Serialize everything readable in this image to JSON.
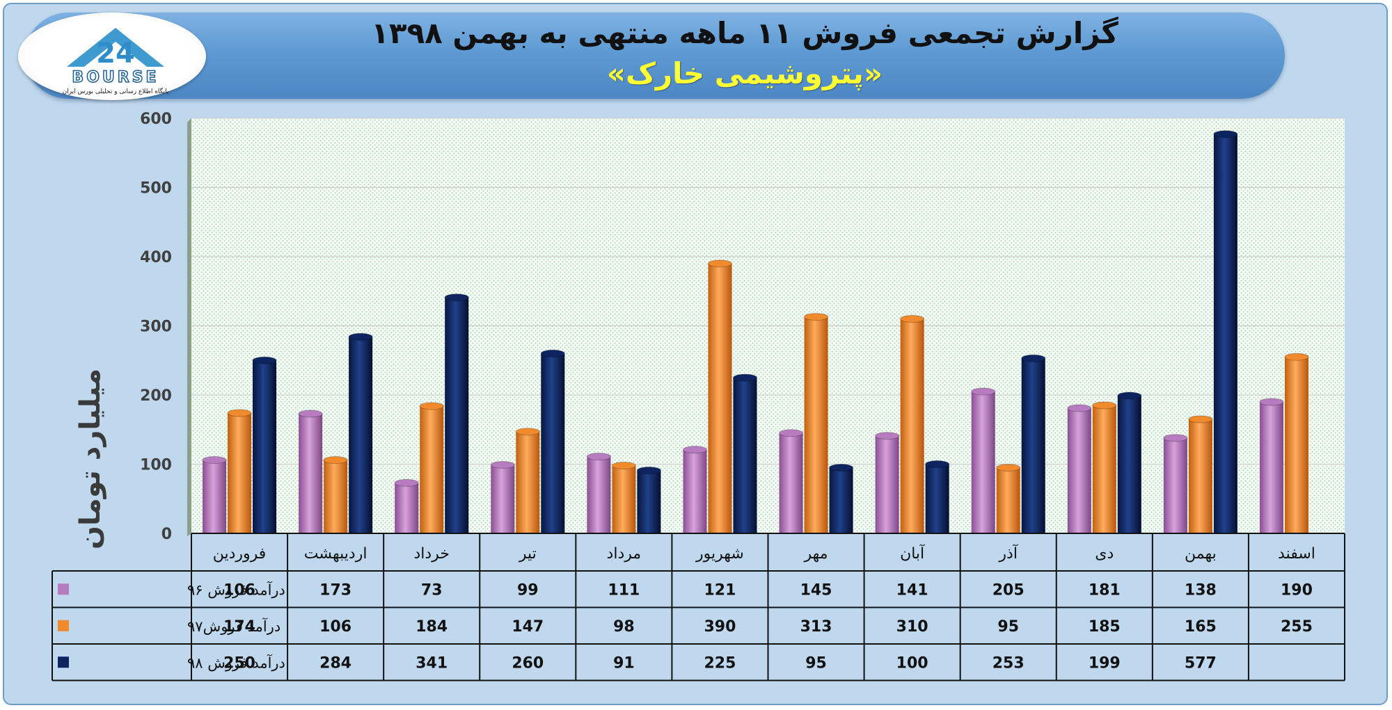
{
  "header": {
    "title": "گزارش تجمعی فروش ۱۱ ماهه منتهی به بهمن ۱۳۹۸",
    "subtitle": "«پتروشیمی خارک»"
  },
  "logo": {
    "wordmark": "BOURSE",
    "tagline": "پایگاه اطلاع رسانی و تحلیلی بورس ایران"
  },
  "colors": {
    "series96": "#b77bc0",
    "series97": "#f08a2c",
    "series98": "#0d2460",
    "plot_bg": "#f3f9f3",
    "grid": "#c9c9c9"
  },
  "chart_data": {
    "type": "bar",
    "ylabel": "میلیارد تومان",
    "ylim": [
      0,
      600
    ],
    "yticks": [
      0,
      100,
      200,
      300,
      400,
      500,
      600
    ],
    "grid": true,
    "categories": [
      "فروردین",
      "اردیبهشت",
      "خرداد",
      "تیر",
      "مرداد",
      "شهریور",
      "مهر",
      "آبان",
      "آذر",
      "دی",
      "بهمن",
      "اسفند"
    ],
    "series": [
      {
        "name": "درآمد فروش ۹۶",
        "values": [
          106,
          173,
          73,
          99,
          111,
          121,
          145,
          141,
          205,
          181,
          138,
          190
        ]
      },
      {
        "name": "درآمد فروش۹۷",
        "values": [
          174,
          106,
          184,
          147,
          98,
          390,
          313,
          310,
          95,
          185,
          165,
          255
        ]
      },
      {
        "name": "درآمد فروش ۹۸",
        "values": [
          250,
          284,
          341,
          260,
          91,
          225,
          95,
          100,
          253,
          199,
          577,
          null
        ]
      }
    ]
  }
}
